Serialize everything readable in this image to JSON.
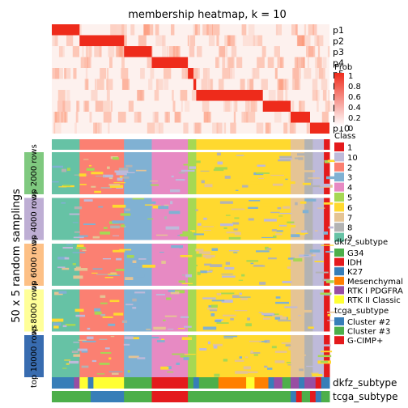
{
  "chart_data": {
    "type": "heatmap",
    "title": "membership heatmap, k = 10",
    "ylabel": "50 x 5 random samplings",
    "membership_rows": [
      "p1",
      "p2",
      "p3",
      "p4",
      "p5",
      "p6",
      "p7",
      "p8",
      "p9",
      "p10"
    ],
    "membership_segments": [
      {
        "row": "p1",
        "from": 0.0,
        "to": 0.1
      },
      {
        "row": "p2",
        "from": 0.1,
        "to": 0.26
      },
      {
        "row": "p3",
        "from": 0.26,
        "to": 0.36
      },
      {
        "row": "p4",
        "from": 0.36,
        "to": 0.49
      },
      {
        "row": "p5",
        "from": 0.49,
        "to": 0.51
      },
      {
        "row": "p6",
        "from": 0.51,
        "to": 0.52
      },
      {
        "row": "p7",
        "from": 0.52,
        "to": 0.76
      },
      {
        "row": "p8",
        "from": 0.76,
        "to": 0.86
      },
      {
        "row": "p9",
        "from": 0.86,
        "to": 0.93
      },
      {
        "row": "p10",
        "from": 0.93,
        "to": 1.0
      }
    ],
    "prob_legend": {
      "title": "Prob",
      "ticks": [
        "1",
        "0.8",
        "0.6",
        "0.4",
        "0.2",
        "0"
      ]
    },
    "class_legend": {
      "title": "Class",
      "items": [
        {
          "label": "1",
          "color": "#e41a1c"
        },
        {
          "label": "10",
          "color": "#bebada"
        },
        {
          "label": "2",
          "color": "#fb8072"
        },
        {
          "label": "3",
          "color": "#80b1d3"
        },
        {
          "label": "4",
          "color": "#e78ac3"
        },
        {
          "label": "5",
          "color": "#a6d854"
        },
        {
          "label": "6",
          "color": "#ffd92f"
        },
        {
          "label": "7",
          "color": "#e5c494"
        },
        {
          "label": "8",
          "color": "#b3b3b3"
        },
        {
          "label": "9",
          "color": "#66c2a5"
        }
      ]
    },
    "class_bar": [
      {
        "class": "9",
        "from": 0.0,
        "to": 0.1
      },
      {
        "class": "2",
        "from": 0.1,
        "to": 0.26
      },
      {
        "class": "3",
        "from": 0.26,
        "to": 0.36
      },
      {
        "class": "4",
        "from": 0.36,
        "to": 0.49
      },
      {
        "class": "5",
        "from": 0.49,
        "to": 0.52
      },
      {
        "class": "6",
        "from": 0.52,
        "to": 0.86
      },
      {
        "class": "7",
        "from": 0.86,
        "to": 0.91
      },
      {
        "class": "8",
        "from": 0.91,
        "to": 0.94
      },
      {
        "class": "10",
        "from": 0.94,
        "to": 0.98
      },
      {
        "class": "1",
        "from": 0.98,
        "to": 1.0
      }
    ],
    "sampling_groups": [
      {
        "label": "top 2000 rows",
        "color": "#7fc97f"
      },
      {
        "label": "top 4000 rows",
        "color": "#beaed4"
      },
      {
        "label": "top 6000 rows",
        "color": "#fdc086"
      },
      {
        "label": "top 8000 rows",
        "color": "#ffff99"
      },
      {
        "label": "top 10000 rows",
        "color": "#386cb0"
      }
    ],
    "dkfz_legend": {
      "title": "dkfz_subtype",
      "items": [
        {
          "label": "G34",
          "color": "#4daf4a"
        },
        {
          "label": "IDH",
          "color": "#e41a1c"
        },
        {
          "label": "K27",
          "color": "#377eb8"
        },
        {
          "label": "Mesenchymal",
          "color": "#ff7f00"
        },
        {
          "label": "RTK I PDGFRA",
          "color": "#984ea3"
        },
        {
          "label": "RTK II Classic",
          "color": "#ffff33"
        }
      ]
    },
    "tcga_legend": {
      "title": "tcga_subtype",
      "items": [
        {
          "label": "Cluster #2",
          "color": "#377eb8"
        },
        {
          "label": "Cluster #3",
          "color": "#4daf4a"
        },
        {
          "label": "G-CIMP+",
          "color": "#e41a1c"
        }
      ]
    },
    "dkfz_bar": [
      {
        "label": "K27",
        "from": 0.0,
        "to": 0.08
      },
      {
        "label": "RTK I PDGFRA",
        "from": 0.08,
        "to": 0.1
      },
      {
        "label": "RTK II Classic",
        "from": 0.1,
        "to": 0.13
      },
      {
        "label": "K27",
        "from": 0.13,
        "to": 0.15
      },
      {
        "label": "RTK II Classic",
        "from": 0.15,
        "to": 0.26
      },
      {
        "label": "G34",
        "from": 0.26,
        "to": 0.36
      },
      {
        "label": "IDH",
        "from": 0.36,
        "to": 0.49
      },
      {
        "label": "G34",
        "from": 0.49,
        "to": 0.51
      },
      {
        "label": "K27",
        "from": 0.51,
        "to": 0.53
      },
      {
        "label": "G34",
        "from": 0.53,
        "to": 0.6
      },
      {
        "label": "Mesenchymal",
        "from": 0.6,
        "to": 0.7
      },
      {
        "label": "RTK II Classic",
        "from": 0.7,
        "to": 0.73
      },
      {
        "label": "Mesenchymal",
        "from": 0.73,
        "to": 0.78
      },
      {
        "label": "K27",
        "from": 0.78,
        "to": 0.8
      },
      {
        "label": "RTK I PDGFRA",
        "from": 0.8,
        "to": 0.83
      },
      {
        "label": "G34",
        "from": 0.83,
        "to": 0.86
      },
      {
        "label": "RTK I PDGFRA",
        "from": 0.86,
        "to": 0.89
      },
      {
        "label": "K27",
        "from": 0.89,
        "to": 0.91
      },
      {
        "label": "RTK I PDGFRA",
        "from": 0.91,
        "to": 0.95
      },
      {
        "label": "IDH",
        "from": 0.95,
        "to": 0.97
      },
      {
        "label": "K27",
        "from": 0.97,
        "to": 1.0
      }
    ],
    "tcga_bar": [
      {
        "label": "Cluster #3",
        "from": 0.0,
        "to": 0.14
      },
      {
        "label": "Cluster #2",
        "from": 0.14,
        "to": 0.26
      },
      {
        "label": "Cluster #3",
        "from": 0.26,
        "to": 0.36
      },
      {
        "label": "G-CIMP+",
        "from": 0.36,
        "to": 0.49
      },
      {
        "label": "Cluster #3",
        "from": 0.49,
        "to": 0.86
      },
      {
        "label": "Cluster #2",
        "from": 0.86,
        "to": 0.88
      },
      {
        "label": "G-CIMP+",
        "from": 0.88,
        "to": 0.9
      },
      {
        "label": "Cluster #3",
        "from": 0.9,
        "to": 0.93
      },
      {
        "label": "G-CIMP+",
        "from": 0.93,
        "to": 0.95
      },
      {
        "label": "Cluster #2",
        "from": 0.95,
        "to": 0.97
      },
      {
        "label": "Cluster #3",
        "from": 0.97,
        "to": 1.0
      }
    ],
    "annotation_labels": {
      "dkfz": "dkfz_subtype",
      "tcga": "tcga_subtype"
    }
  }
}
